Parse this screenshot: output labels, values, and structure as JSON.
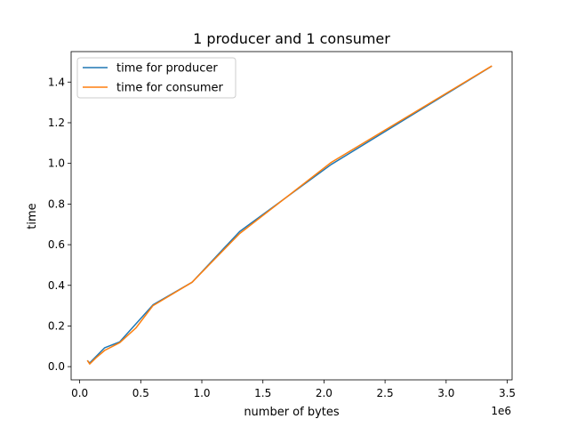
{
  "chart_data": {
    "type": "line",
    "title": "1 producer and 1 consumer",
    "xlabel": "number of bytes",
    "ylabel": "time",
    "x_offset_label": "1e6",
    "xlim": [
      -0.07,
      3.54
    ],
    "ylim": [
      -0.065,
      1.55
    ],
    "x_ticks": [
      0.0,
      0.5,
      1.0,
      1.5,
      2.0,
      2.5,
      3.0,
      3.5
    ],
    "x_tick_labels": [
      "0.0",
      "0.5",
      "1.0",
      "1.5",
      "2.0",
      "2.5",
      "3.0",
      "3.5"
    ],
    "y_ticks": [
      0.0,
      0.2,
      0.4,
      0.6,
      0.8,
      1.0,
      1.2,
      1.4
    ],
    "y_tick_labels": [
      "0.0",
      "0.2",
      "0.4",
      "0.6",
      "0.8",
      "1.0",
      "1.2",
      "1.4"
    ],
    "grid": false,
    "legend_position": "top-left",
    "series": [
      {
        "name": "time for producer",
        "color": "#1f77b4",
        "x": [
          0.066,
          0.082,
          0.131,
          0.205,
          0.328,
          0.6,
          0.92,
          1.31,
          2.06,
          3.37
        ],
        "y": [
          0.028,
          0.018,
          0.048,
          0.093,
          0.122,
          0.304,
          0.415,
          0.665,
          0.995,
          1.477
        ]
      },
      {
        "name": "time for consumer",
        "color": "#ff7f0e",
        "x": [
          0.066,
          0.082,
          0.131,
          0.205,
          0.328,
          0.46,
          0.6,
          0.92,
          1.31,
          2.06,
          3.37
        ],
        "y": [
          0.028,
          0.013,
          0.042,
          0.08,
          0.118,
          0.19,
          0.3,
          0.415,
          0.655,
          1.005,
          1.478
        ]
      }
    ]
  }
}
